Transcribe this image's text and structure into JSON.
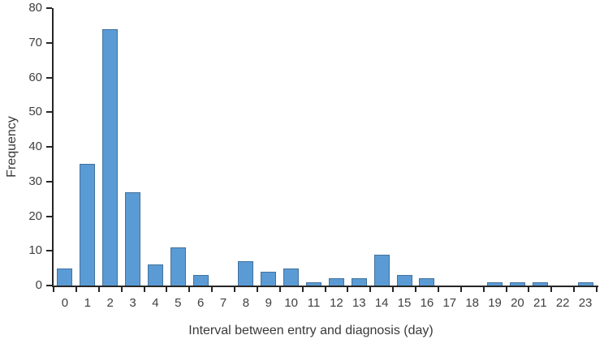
{
  "chart_data": {
    "type": "bar",
    "title": "",
    "xlabel": "Interval between entry and diagnosis (day)",
    "ylabel": "Frequency",
    "categories": [
      "0",
      "1",
      "2",
      "3",
      "4",
      "5",
      "6",
      "7",
      "8",
      "9",
      "10",
      "11",
      "12",
      "13",
      "14",
      "15",
      "16",
      "17",
      "18",
      "19",
      "20",
      "21",
      "22",
      "23"
    ],
    "values": [
      5,
      35,
      74,
      27,
      6,
      11,
      3,
      0,
      7,
      4,
      5,
      1,
      2,
      2,
      9,
      3,
      2,
      0,
      0,
      1,
      1,
      1,
      0,
      1
    ],
    "ylim": [
      0,
      80
    ],
    "ytick_step": 10,
    "yticks": [
      0,
      10,
      20,
      30,
      40,
      50,
      60,
      70,
      80
    ],
    "grid": false,
    "legend": null,
    "colors": {
      "bar_fill": "#5B9BD5",
      "bar_border": "#41719C",
      "axis": "#262626",
      "tick_text": "#3f3f3f"
    }
  }
}
